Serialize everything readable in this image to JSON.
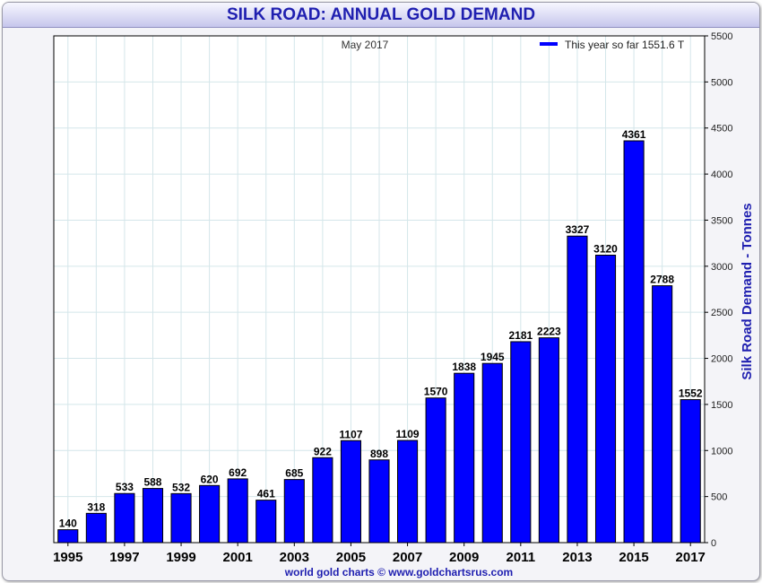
{
  "chart_data": {
    "type": "bar",
    "title": "SILK ROAD: ANNUAL GOLD DEMAND",
    "subtitle": "May 2017",
    "legend": {
      "label": "This year so far 1551.6 T",
      "placement": "top-right"
    },
    "ylabel": "Silk Road Demand - Tonnes",
    "ylim": [
      0,
      5500
    ],
    "yticks": [
      0,
      500,
      1000,
      1500,
      2000,
      2500,
      3000,
      3500,
      4000,
      4500,
      5000,
      5500
    ],
    "y_axis_position": "right",
    "grid": true,
    "credit": "world gold charts © www.goldchartsrus.com",
    "categories": [
      "1995",
      "1996",
      "1997",
      "1998",
      "1999",
      "2000",
      "2001",
      "2002",
      "2003",
      "2004",
      "2005",
      "2006",
      "2007",
      "2008",
      "2009",
      "2010",
      "2011",
      "2012",
      "2013",
      "2014",
      "2015",
      "2016",
      "2017"
    ],
    "xtick_labels": [
      "1995",
      "1997",
      "1999",
      "2001",
      "2003",
      "2005",
      "2007",
      "2009",
      "2011",
      "2013",
      "2015",
      "2017"
    ],
    "values": [
      140,
      318,
      533,
      588,
      532,
      620,
      692,
      461,
      685,
      922,
      1107,
      898,
      1109,
      1570,
      1838,
      1945,
      2181,
      2223,
      3327,
      3120,
      4361,
      2788,
      1552
    ],
    "data_labels": [
      "140",
      "318",
      "533",
      "588",
      "532",
      "620",
      "692",
      "461",
      "685",
      "922",
      "1107",
      "898",
      "1109",
      "1570",
      "1838",
      "1945",
      "2181",
      "2223",
      "3327",
      "3120",
      "4361",
      "2788",
      "1552"
    ],
    "colors": {
      "bar": "#0000ff",
      "bar_edge": "#000000",
      "title": "#1f1fb0",
      "ylabel": "#1f1fb0",
      "credit": "#1f1fb0",
      "grid": "#d4e6ea"
    }
  }
}
